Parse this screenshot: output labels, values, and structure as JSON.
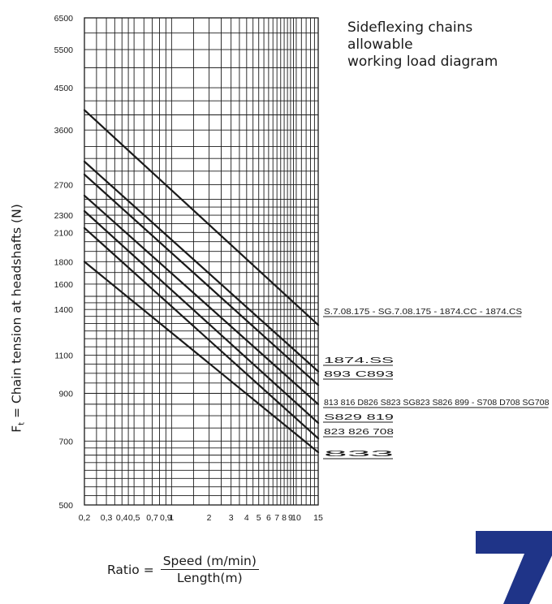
{
  "title": {
    "line1": "Sideflexing chains",
    "line2": "allowable",
    "line3": "working load diagram"
  },
  "ylabel": {
    "main": "F",
    "sub": "t",
    "rest": " = Chain tension at headshafts (N)"
  },
  "formula": {
    "lhs": "Ratio =",
    "numerator": "Speed (m/min)",
    "denominator": "Length(m)"
  },
  "page_number": "7",
  "colors": {
    "ink": "#1a1a1a",
    "accent": "#1f3488"
  },
  "chart_data": {
    "type": "line",
    "x_scale": "log",
    "y_scale": "log",
    "xlim": [
      0.2,
      15
    ],
    "ylim": [
      500,
      6500
    ],
    "grid": true,
    "x_ticks": [
      {
        "value": 0.2,
        "label": "0,2"
      },
      {
        "value": 0.3,
        "label": "0,3"
      },
      {
        "value": 0.4,
        "label": "0,4"
      },
      {
        "value": 0.5,
        "label": "0,5"
      },
      {
        "value": 0.7,
        "label": "0,7"
      },
      {
        "value": 0.9,
        "label": "0,9"
      },
      {
        "value": 1,
        "label": "1"
      },
      {
        "value": 2,
        "label": "2"
      },
      {
        "value": 3,
        "label": "3"
      },
      {
        "value": 4,
        "label": "4"
      },
      {
        "value": 5,
        "label": "5"
      },
      {
        "value": 6,
        "label": "6"
      },
      {
        "value": 7,
        "label": "7"
      },
      {
        "value": 8,
        "label": "8"
      },
      {
        "value": 9,
        "label": "9"
      },
      {
        "value": 10,
        "label": "10"
      },
      {
        "value": 15,
        "label": "15"
      }
    ],
    "y_ticks": [
      500,
      700,
      900,
      1100,
      1400,
      1600,
      1800,
      2100,
      2300,
      2700,
      3600,
      4500,
      5500,
      6500
    ],
    "x_grid": [
      0.2,
      0.25,
      0.3,
      0.35,
      0.4,
      0.45,
      0.5,
      0.6,
      0.7,
      0.8,
      0.9,
      1,
      1.5,
      2,
      2.5,
      3,
      3.5,
      4,
      4.5,
      5,
      5.5,
      6,
      6.5,
      7,
      7.5,
      8,
      8.5,
      9,
      9.5,
      10,
      11,
      12,
      13,
      14,
      15
    ],
    "y_grid": [
      500,
      525,
      550,
      575,
      600,
      625,
      650,
      675,
      700,
      750,
      800,
      850,
      900,
      950,
      1000,
      1050,
      1100,
      1150,
      1200,
      1250,
      1300,
      1350,
      1400,
      1450,
      1500,
      1600,
      1700,
      1800,
      1900,
      2000,
      2100,
      2200,
      2300,
      2400,
      2500,
      2700,
      2900,
      3100,
      3300,
      3600,
      3900,
      4200,
      4500,
      5000,
      5500,
      6000,
      6500
    ],
    "series": [
      {
        "name": "S.7.08.175 - SG.7.08.175 - 1874.CC - 1874.CS",
        "x": [
          0.2,
          15
        ],
        "y": [
          4000,
          1290
        ]
      },
      {
        "name": "1874.SS",
        "x": [
          0.2,
          15
        ],
        "y": [
          3050,
          1010
        ]
      },
      {
        "name": "893 C893",
        "x": [
          0.2,
          15
        ],
        "y": [
          2850,
          940
        ]
      },
      {
        "name": "813 816 D826 S823 SG823 S826 899 - S708 D708 SG708",
        "x": [
          0.2,
          15
        ],
        "y": [
          2550,
          850
        ]
      },
      {
        "name": "S829 819",
        "x": [
          0.2,
          15
        ],
        "y": [
          2350,
          770
        ]
      },
      {
        "name": "823 826 708",
        "x": [
          0.2,
          15
        ],
        "y": [
          2150,
          710
        ]
      },
      {
        "name": "833",
        "x": [
          0.2,
          15
        ],
        "y": [
          1800,
          660
        ]
      }
    ]
  }
}
